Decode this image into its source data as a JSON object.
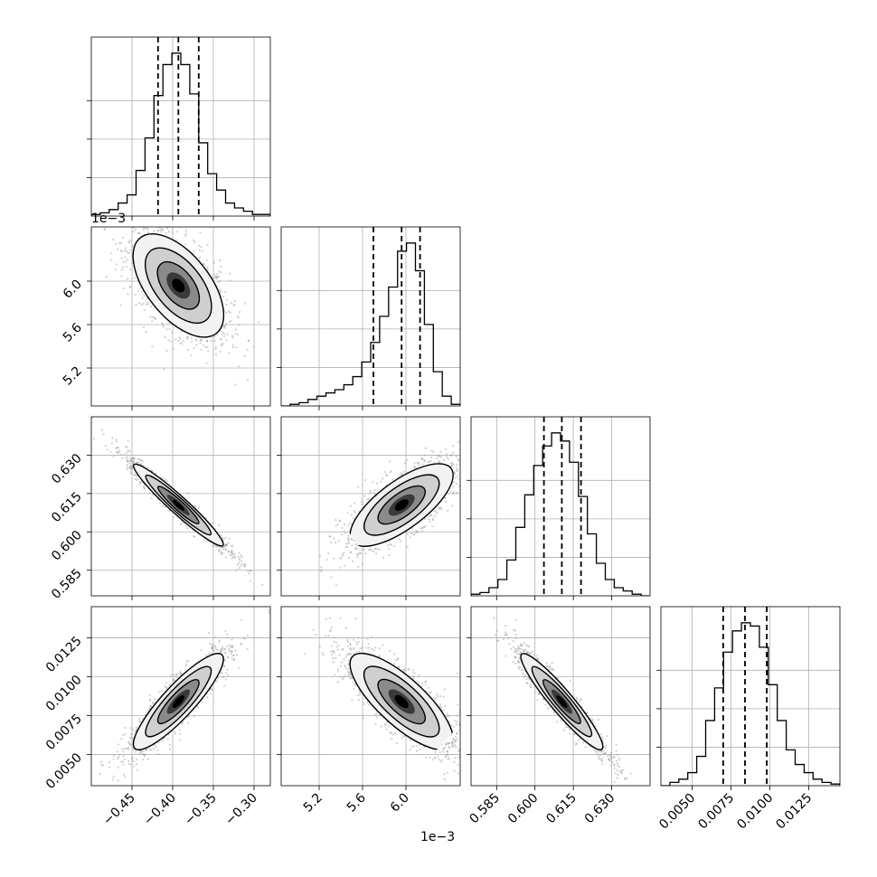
{
  "chart_data": {
    "type": "corner",
    "parameters": [
      {
        "range": [
          -0.5,
          -0.28
        ],
        "ticks": [
          -0.45,
          -0.4,
          -0.35,
          -0.3
        ],
        "tick_labels": [
          "−0.45",
          "−0.40",
          "−0.35",
          "−0.30"
        ],
        "offset_label": "",
        "quantiles": [
          -0.418,
          -0.393,
          -0.368
        ],
        "hist_rel": [
          0.01,
          0.02,
          0.04,
          0.08,
          0.13,
          0.28,
          0.48,
          0.74,
          0.93,
          1.0,
          0.93,
          0.75,
          0.45,
          0.26,
          0.16,
          0.08,
          0.05,
          0.03,
          0.01,
          0.01
        ]
      },
      {
        "range": [
          4.85,
          6.5
        ],
        "ticks": [
          5.2,
          5.6,
          6.0
        ],
        "tick_labels": [
          "5.2",
          "5.6",
          "6.0"
        ],
        "offset_label": "1e−3",
        "quantiles": [
          5.7,
          5.96,
          6.13
        ],
        "hist_rel": [
          0.0,
          0.01,
          0.02,
          0.04,
          0.06,
          0.08,
          0.1,
          0.13,
          0.18,
          0.27,
          0.39,
          0.55,
          0.73,
          0.95,
          1.0,
          0.83,
          0.5,
          0.21,
          0.06,
          0.01
        ]
      },
      {
        "range": [
          0.575,
          0.645
        ],
        "ticks": [
          0.585,
          0.6,
          0.615,
          0.63
        ],
        "tick_labels": [
          "0.585",
          "0.600",
          "0.615",
          "0.630"
        ],
        "offset_label": "",
        "quantiles": [
          0.6035,
          0.6105,
          0.618
        ],
        "hist_rel": [
          0.01,
          0.02,
          0.05,
          0.1,
          0.22,
          0.42,
          0.62,
          0.8,
          0.92,
          1.0,
          0.95,
          0.82,
          0.61,
          0.38,
          0.2,
          0.1,
          0.05,
          0.03,
          0.01,
          0.0
        ]
      },
      {
        "range": [
          0.003,
          0.0145
        ],
        "ticks": [
          0.005,
          0.0075,
          0.01,
          0.0125
        ],
        "tick_labels": [
          "0.0050",
          "0.0075",
          "0.0100",
          "0.0125"
        ],
        "offset_label": "",
        "quantiles": [
          0.007,
          0.0084,
          0.0098
        ],
        "hist_rel": [
          0.0,
          0.02,
          0.04,
          0.08,
          0.18,
          0.4,
          0.6,
          0.82,
          0.95,
          1.0,
          0.98,
          0.85,
          0.62,
          0.4,
          0.22,
          0.13,
          0.08,
          0.04,
          0.02,
          0.01
        ]
      }
    ],
    "covariance": [
      [
        1.0,
        -0.6,
        -0.97,
        0.9
      ],
      [
        -0.6,
        1.0,
        0.75,
        -0.8
      ],
      [
        -0.97,
        0.75,
        1.0,
        -0.95
      ],
      [
        0.9,
        -0.8,
        -0.95,
        1.0
      ]
    ],
    "grid": true
  }
}
